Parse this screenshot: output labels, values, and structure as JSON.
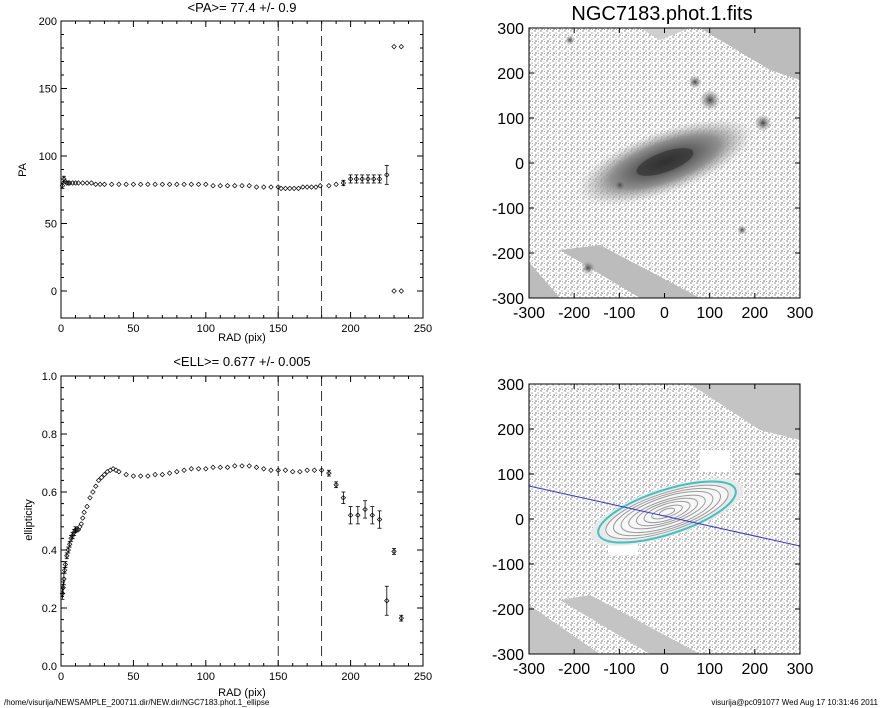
{
  "footer": {
    "left": "/home/visurija/NEWSAMPLE_200711.dir/NEW.dir/NGC7183.phot.1_ellipse",
    "right": "visurija@pc091077  Wed Aug 17 10:31:46 2011"
  },
  "image_panels": {
    "title": "NGC7183.phot.1.fits",
    "x_ticks": [
      "-300",
      "-200",
      "-100",
      "0",
      "100",
      "200",
      "300"
    ],
    "y_ticks": [
      "300",
      "200",
      "100",
      "0",
      "-100",
      "-200",
      "-300"
    ]
  },
  "chart_data": [
    {
      "type": "scatter",
      "title": "<PA>=  77.4 +/-   0.9",
      "xlabel": "RAD (pix)",
      "ylabel": "PA",
      "xlim": [
        0,
        250
      ],
      "ylim": [
        -20,
        200
      ],
      "x_ticks": [
        "0",
        "50",
        "100",
        "150",
        "200",
        "250"
      ],
      "y_ticks": [
        "0",
        "50",
        "100",
        "150",
        "200"
      ],
      "vlines": [
        150,
        180
      ],
      "series": [
        {
          "x": [
            1,
            2,
            3,
            4,
            5,
            6,
            8,
            10,
            12,
            15,
            18,
            21,
            24,
            27,
            30,
            35,
            40,
            45,
            50,
            55,
            60,
            65,
            70,
            75,
            80,
            85,
            90,
            95,
            100,
            105,
            110,
            115,
            120,
            125,
            130,
            135,
            140,
            145,
            150,
            152,
            155,
            158,
            161,
            164,
            167,
            170,
            173,
            176,
            179,
            185,
            190,
            195,
            200,
            204,
            208,
            212,
            216,
            220,
            225
          ],
          "y": [
            78,
            83,
            81,
            80,
            80,
            80,
            80,
            80,
            80,
            80,
            80,
            80,
            79,
            79,
            79,
            79,
            79,
            79,
            79,
            79,
            79,
            79,
            79,
            79,
            79,
            79,
            79,
            79,
            79,
            78,
            78,
            78,
            78,
            78,
            78,
            77,
            77,
            77,
            77,
            76,
            76,
            76,
            76,
            76,
            77,
            77,
            77,
            77,
            78,
            78,
            79,
            80,
            83,
            83,
            83,
            83,
            83,
            83,
            86
          ],
          "err": [
            2,
            2,
            1,
            1,
            1,
            0.5,
            0.5,
            0.5,
            0.5,
            0.5,
            0.5,
            0.5,
            0.5,
            0.5,
            0.5,
            0.5,
            0.5,
            0.5,
            0.5,
            0.5,
            0.5,
            0.5,
            0.5,
            0.5,
            0.5,
            0.5,
            0.5,
            0.5,
            0.5,
            0.5,
            0.5,
            0.5,
            0.5,
            0.5,
            0.5,
            0.5,
            0.5,
            0.5,
            0.5,
            0.5,
            0.5,
            0.5,
            0.5,
            0.5,
            0.5,
            0.5,
            0.5,
            0.5,
            0.5,
            1,
            1,
            2,
            3,
            3,
            3,
            3,
            3,
            3,
            7
          ]
        },
        {
          "x": [
            230,
            235,
            230,
            235
          ],
          "y": [
            181,
            181,
            0,
            0
          ],
          "err": [
            1,
            1,
            1,
            1
          ]
        }
      ]
    },
    {
      "type": "scatter",
      "title": "<ELL>= 0.677 +/-  0.005",
      "xlabel": "RAD (pix)",
      "ylabel": "ellipticity",
      "xlim": [
        0,
        250
      ],
      "ylim": [
        0.0,
        1.0
      ],
      "x_ticks": [
        "0",
        "50",
        "100",
        "150",
        "200",
        "250"
      ],
      "y_ticks": [
        "0.0",
        "0.2",
        "0.4",
        "0.6",
        "0.8",
        "1.0"
      ],
      "vlines": [
        150,
        180
      ],
      "series": [
        {
          "x": [
            1,
            1.5,
            2,
            2.5,
            3,
            4,
            5,
            6,
            7,
            8,
            9,
            10,
            11,
            12,
            13,
            14,
            15,
            16,
            18,
            20,
            22,
            24,
            26,
            28,
            30,
            32,
            34,
            36,
            38,
            40,
            45,
            50,
            55,
            60,
            65,
            70,
            75,
            80,
            85,
            90,
            95,
            100,
            105,
            110,
            115,
            120,
            125,
            130,
            135,
            140,
            145,
            150,
            155,
            160,
            165,
            170,
            175,
            180,
            185,
            190,
            195,
            200,
            205,
            210,
            215,
            220,
            225,
            230,
            235
          ],
          "y": [
            0.25,
            0.27,
            0.3,
            0.33,
            0.35,
            0.38,
            0.4,
            0.42,
            0.44,
            0.45,
            0.46,
            0.47,
            0.47,
            0.47,
            0.48,
            0.49,
            0.51,
            0.53,
            0.55,
            0.58,
            0.6,
            0.62,
            0.64,
            0.65,
            0.66,
            0.67,
            0.675,
            0.68,
            0.675,
            0.67,
            0.66,
            0.655,
            0.655,
            0.655,
            0.66,
            0.66,
            0.665,
            0.67,
            0.675,
            0.68,
            0.68,
            0.68,
            0.685,
            0.685,
            0.685,
            0.69,
            0.69,
            0.69,
            0.685,
            0.68,
            0.675,
            0.675,
            0.675,
            0.67,
            0.67,
            0.675,
            0.675,
            0.675,
            0.665,
            0.625,
            0.58,
            0.52,
            0.52,
            0.54,
            0.52,
            0.505,
            0.225,
            0.395,
            0.165
          ],
          "err": [
            0.02,
            0.02,
            0.02,
            0.01,
            0.01,
            0.01,
            0.01,
            0.01,
            0.01,
            0.01,
            0.01,
            0.01,
            0.005,
            0.005,
            0.005,
            0.005,
            0.005,
            0.005,
            0.005,
            0.005,
            0.005,
            0.005,
            0.005,
            0.005,
            0.005,
            0.005,
            0.005,
            0.005,
            0.005,
            0.005,
            0.005,
            0.005,
            0.005,
            0.005,
            0.005,
            0.005,
            0.005,
            0.005,
            0.005,
            0.005,
            0.005,
            0.005,
            0.005,
            0.005,
            0.005,
            0.005,
            0.005,
            0.005,
            0.005,
            0.005,
            0.005,
            0.005,
            0.005,
            0.005,
            0.005,
            0.005,
            0.005,
            0.005,
            0.01,
            0.01,
            0.02,
            0.03,
            0.03,
            0.03,
            0.03,
            0.03,
            0.05,
            0.01,
            0.01
          ]
        }
      ]
    }
  ]
}
